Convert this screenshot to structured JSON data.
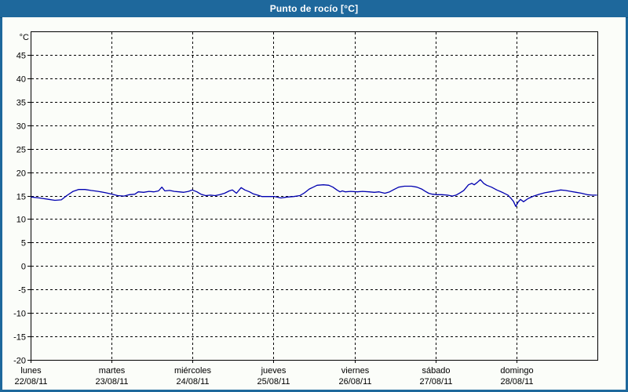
{
  "window": {
    "title": "Punto de rocío [°C]"
  },
  "colors": {
    "frame_blue": "#1e689c",
    "plot_background": "#fbfdf9",
    "grid_color": "#000000",
    "axis_text_color": "#000000",
    "line_color": "#0000b0",
    "title_text_color": "#ffffff"
  },
  "chart_data": {
    "type": "line",
    "title": "Punto de rocío [°C]",
    "y_unit_label": "°C",
    "ylim": [
      -20,
      50
    ],
    "yticks": [
      -20,
      -15,
      -10,
      -5,
      0,
      5,
      10,
      15,
      20,
      25,
      30,
      35,
      40,
      45
    ],
    "grid": "dashed",
    "legend": "none",
    "x_hours_total": 168,
    "x_day_ticks": [
      {
        "name": "lunes",
        "date": "22/08/11"
      },
      {
        "name": "martes",
        "date": "23/08/11"
      },
      {
        "name": "miércoles",
        "date": "24/08/11"
      },
      {
        "name": "jueves",
        "date": "25/08/11"
      },
      {
        "name": "viernes",
        "date": "26/08/11"
      },
      {
        "name": "sábado",
        "date": "27/08/11"
      },
      {
        "name": "domingo",
        "date": "28/08/11"
      }
    ],
    "series": [
      {
        "name": "Punto de rocío",
        "color": "#0000b0",
        "points": [
          [
            0.2,
            14.7
          ],
          [
            2.6,
            14.5
          ],
          [
            5.4,
            14.2
          ],
          [
            7.2,
            14.0
          ],
          [
            9.1,
            14.1
          ],
          [
            10.7,
            15.0
          ],
          [
            12.6,
            15.9
          ],
          [
            14.2,
            16.3
          ],
          [
            16.1,
            16.3
          ],
          [
            17.9,
            16.1
          ],
          [
            20.0,
            15.9
          ],
          [
            22.3,
            15.6
          ],
          [
            24.2,
            15.3
          ],
          [
            25.8,
            15.0
          ],
          [
            27.7,
            14.9
          ],
          [
            29.3,
            15.2
          ],
          [
            30.9,
            15.3
          ],
          [
            31.9,
            15.8
          ],
          [
            33.5,
            15.7
          ],
          [
            35.1,
            15.9
          ],
          [
            36.5,
            15.8
          ],
          [
            37.9,
            16.0
          ],
          [
            38.9,
            16.8
          ],
          [
            39.8,
            16.0
          ],
          [
            41.2,
            16.1
          ],
          [
            42.6,
            15.9
          ],
          [
            44.0,
            15.8
          ],
          [
            45.4,
            15.7
          ],
          [
            46.8,
            15.9
          ],
          [
            47.9,
            16.2
          ],
          [
            49.3,
            15.8
          ],
          [
            50.5,
            15.3
          ],
          [
            51.9,
            15.0
          ],
          [
            53.3,
            15.1
          ],
          [
            54.7,
            15.0
          ],
          [
            56.1,
            15.2
          ],
          [
            57.5,
            15.5
          ],
          [
            58.9,
            16.0
          ],
          [
            59.8,
            16.2
          ],
          [
            61.0,
            15.5
          ],
          [
            62.4,
            16.7
          ],
          [
            63.5,
            16.2
          ],
          [
            64.9,
            15.8
          ],
          [
            65.9,
            15.4
          ],
          [
            67.3,
            15.1
          ],
          [
            68.6,
            14.8
          ],
          [
            70.5,
            14.8
          ],
          [
            72.4,
            14.8
          ],
          [
            74.2,
            14.5
          ],
          [
            76.1,
            14.7
          ],
          [
            78.0,
            14.8
          ],
          [
            79.8,
            15.0
          ],
          [
            81.2,
            15.6
          ],
          [
            82.6,
            16.4
          ],
          [
            83.8,
            16.8
          ],
          [
            84.9,
            17.2
          ],
          [
            86.8,
            17.3
          ],
          [
            88.4,
            17.2
          ],
          [
            89.6,
            16.8
          ],
          [
            90.8,
            16.2
          ],
          [
            91.7,
            15.8
          ],
          [
            92.4,
            16.0
          ],
          [
            93.3,
            15.8
          ],
          [
            94.9,
            15.9
          ],
          [
            96.8,
            15.8
          ],
          [
            98.4,
            15.9
          ],
          [
            100.3,
            15.8
          ],
          [
            101.9,
            15.7
          ],
          [
            103.3,
            15.8
          ],
          [
            105.0,
            15.5
          ],
          [
            106.4,
            15.8
          ],
          [
            107.7,
            16.3
          ],
          [
            109.1,
            16.8
          ],
          [
            110.8,
            17.0
          ],
          [
            112.9,
            17.0
          ],
          [
            114.5,
            16.8
          ],
          [
            115.9,
            16.4
          ],
          [
            117.0,
            15.9
          ],
          [
            118.0,
            15.5
          ],
          [
            119.1,
            15.3
          ],
          [
            120.5,
            15.2
          ],
          [
            121.9,
            15.2
          ],
          [
            123.6,
            15.1
          ],
          [
            125.0,
            14.9
          ],
          [
            126.1,
            15.1
          ],
          [
            127.3,
            15.6
          ],
          [
            128.4,
            16.1
          ],
          [
            129.8,
            17.3
          ],
          [
            130.8,
            17.6
          ],
          [
            131.5,
            17.3
          ],
          [
            132.4,
            17.8
          ],
          [
            133.3,
            18.4
          ],
          [
            134.3,
            17.6
          ],
          [
            135.2,
            17.2
          ],
          [
            136.6,
            16.8
          ],
          [
            138.2,
            16.2
          ],
          [
            140.1,
            15.6
          ],
          [
            141.5,
            15.1
          ],
          [
            142.4,
            14.4
          ],
          [
            143.1,
            13.8
          ],
          [
            143.8,
            12.7
          ],
          [
            144.5,
            13.6
          ],
          [
            145.2,
            14.2
          ],
          [
            146.1,
            13.7
          ],
          [
            147.5,
            14.4
          ],
          [
            149.1,
            14.9
          ],
          [
            150.8,
            15.3
          ],
          [
            152.4,
            15.6
          ],
          [
            154.0,
            15.8
          ],
          [
            155.7,
            16.0
          ],
          [
            157.1,
            16.2
          ],
          [
            158.5,
            16.1
          ],
          [
            160.1,
            15.9
          ],
          [
            161.7,
            15.7
          ],
          [
            163.3,
            15.5
          ],
          [
            165.0,
            15.2
          ],
          [
            166.4,
            15.1
          ],
          [
            167.8,
            15.1
          ]
        ]
      }
    ]
  }
}
